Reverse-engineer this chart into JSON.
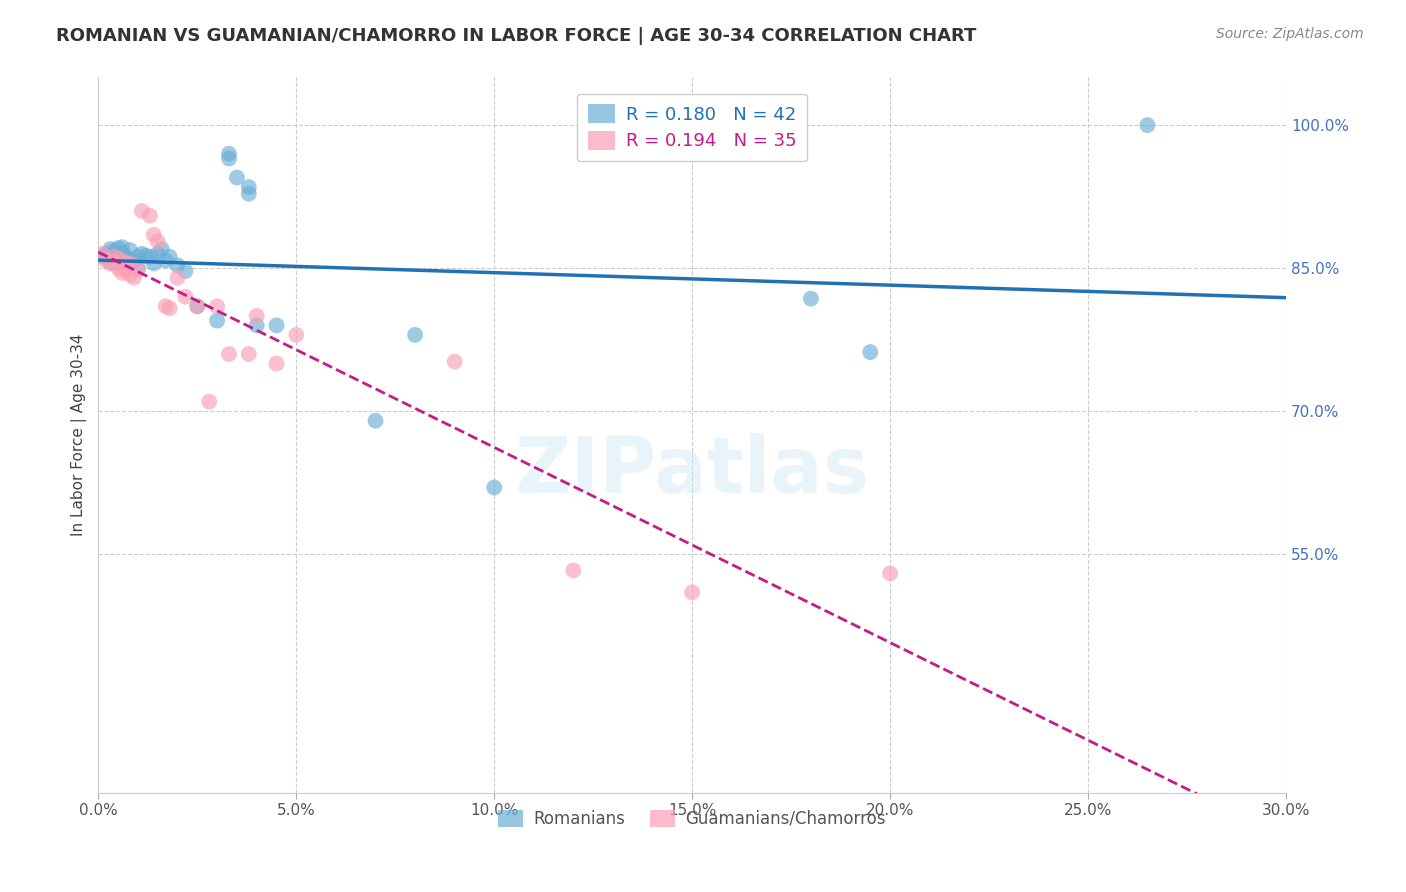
{
  "title": "ROMANIAN VS GUAMANIAN/CHAMORRO IN LABOR FORCE | AGE 30-34 CORRELATION CHART",
  "source_text": "Source: ZipAtlas.com",
  "ylabel": "In Labor Force | Age 30-34",
  "xlim": [
    0.0,
    0.3
  ],
  "ylim": [
    0.3,
    1.05
  ],
  "xticks": [
    0.0,
    0.05,
    0.1,
    0.15,
    0.2,
    0.25,
    0.3
  ],
  "xticklabels": [
    "0.0%",
    "5.0%",
    "10.0%",
    "15.0%",
    "20.0%",
    "25.0%",
    "30.0%"
  ],
  "yticks": [
    0.55,
    0.7,
    0.85,
    1.0
  ],
  "yticklabels": [
    "55.0%",
    "70.0%",
    "85.0%",
    "100.0%"
  ],
  "blue_color": "#6baed6",
  "pink_color": "#fa9fb5",
  "blue_line_color": "#2171b5",
  "pink_line_color": "#c51b8a",
  "legend_blue_R": "0.180",
  "legend_blue_N": "42",
  "legend_pink_R": "0.194",
  "legend_pink_N": "35",
  "watermark": "ZIPatlas",
  "blue_x": [
    0.001,
    0.002,
    0.003,
    0.003,
    0.004,
    0.004,
    0.005,
    0.005,
    0.006,
    0.006,
    0.007,
    0.007,
    0.008,
    0.008,
    0.009,
    0.01,
    0.01,
    0.011,
    0.012,
    0.013,
    0.014,
    0.015,
    0.016,
    0.017,
    0.018,
    0.02,
    0.022,
    0.025,
    0.03,
    0.033,
    0.033,
    0.035,
    0.038,
    0.038,
    0.04,
    0.045,
    0.07,
    0.08,
    0.1,
    0.18,
    0.195,
    0.265
  ],
  "blue_y": [
    0.862,
    0.865,
    0.87,
    0.86,
    0.868,
    0.855,
    0.871,
    0.858,
    0.872,
    0.866,
    0.862,
    0.86,
    0.869,
    0.855,
    0.858,
    0.862,
    0.85,
    0.865,
    0.863,
    0.862,
    0.855,
    0.865,
    0.87,
    0.858,
    0.862,
    0.853,
    0.847,
    0.81,
    0.795,
    0.965,
    0.97,
    0.945,
    0.935,
    0.928,
    0.79,
    0.79,
    0.69,
    0.78,
    0.62,
    0.818,
    0.762,
    1.0
  ],
  "pink_x": [
    0.001,
    0.002,
    0.003,
    0.003,
    0.004,
    0.005,
    0.005,
    0.006,
    0.006,
    0.007,
    0.007,
    0.008,
    0.008,
    0.009,
    0.01,
    0.011,
    0.013,
    0.014,
    0.015,
    0.017,
    0.018,
    0.02,
    0.022,
    0.025,
    0.028,
    0.03,
    0.033,
    0.038,
    0.04,
    0.045,
    0.05,
    0.09,
    0.12,
    0.15,
    0.2
  ],
  "pink_y": [
    0.865,
    0.858,
    0.858,
    0.855,
    0.862,
    0.86,
    0.85,
    0.858,
    0.845,
    0.855,
    0.848,
    0.855,
    0.843,
    0.84,
    0.848,
    0.91,
    0.905,
    0.885,
    0.878,
    0.81,
    0.808,
    0.84,
    0.82,
    0.81,
    0.71,
    0.81,
    0.76,
    0.76,
    0.8,
    0.75,
    0.78,
    0.752,
    0.533,
    0.51,
    0.53
  ]
}
